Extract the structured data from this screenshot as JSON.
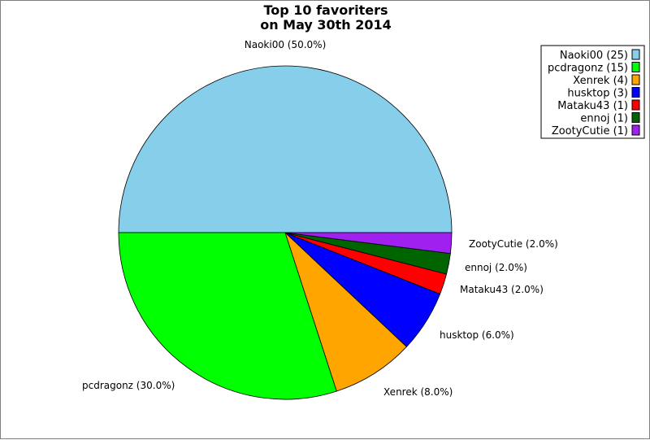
{
  "chart_data": {
    "type": "pie",
    "title": "Top 10 favoriters",
    "subtitle": "on May 30th 2014",
    "slices": [
      {
        "label": "Naoki00",
        "value": 25,
        "percent": "50.0%",
        "legend": "Naoki00 (25)",
        "slice_label": "Naoki00 (50.0%)",
        "color": "#87ceeb"
      },
      {
        "label": "pcdragonz",
        "value": 15,
        "percent": "30.0%",
        "legend": "pcdragonz (15)",
        "slice_label": "pcdragonz (30.0%)",
        "color": "#00ff00"
      },
      {
        "label": "Xenrek",
        "value": 4,
        "percent": "8.0%",
        "legend": "Xenrek (4)",
        "slice_label": "Xenrek (8.0%)",
        "color": "#ffa500"
      },
      {
        "label": "husktop",
        "value": 3,
        "percent": "6.0%",
        "legend": "husktop (3)",
        "slice_label": "husktop (6.0%)",
        "color": "#0000ff"
      },
      {
        "label": "Mataku43",
        "value": 1,
        "percent": "2.0%",
        "legend": "Mataku43 (1)",
        "slice_label": "Mataku43 (2.0%)",
        "color": "#ff0000"
      },
      {
        "label": "ennoj",
        "value": 1,
        "percent": "2.0%",
        "legend": "ennoj (1)",
        "slice_label": "ennoj (2.0%)",
        "color": "#006400"
      },
      {
        "label": "ZootyCutie",
        "value": 1,
        "percent": "2.0%",
        "legend": "ZootyCutie (1)",
        "slice_label": "ZootyCutie (2.0%)",
        "color": "#a020f0"
      }
    ],
    "legend_position": "top-right",
    "start_direction": "right",
    "slice_order": "counter-clockwise from right: Naoki00 upper half"
  }
}
